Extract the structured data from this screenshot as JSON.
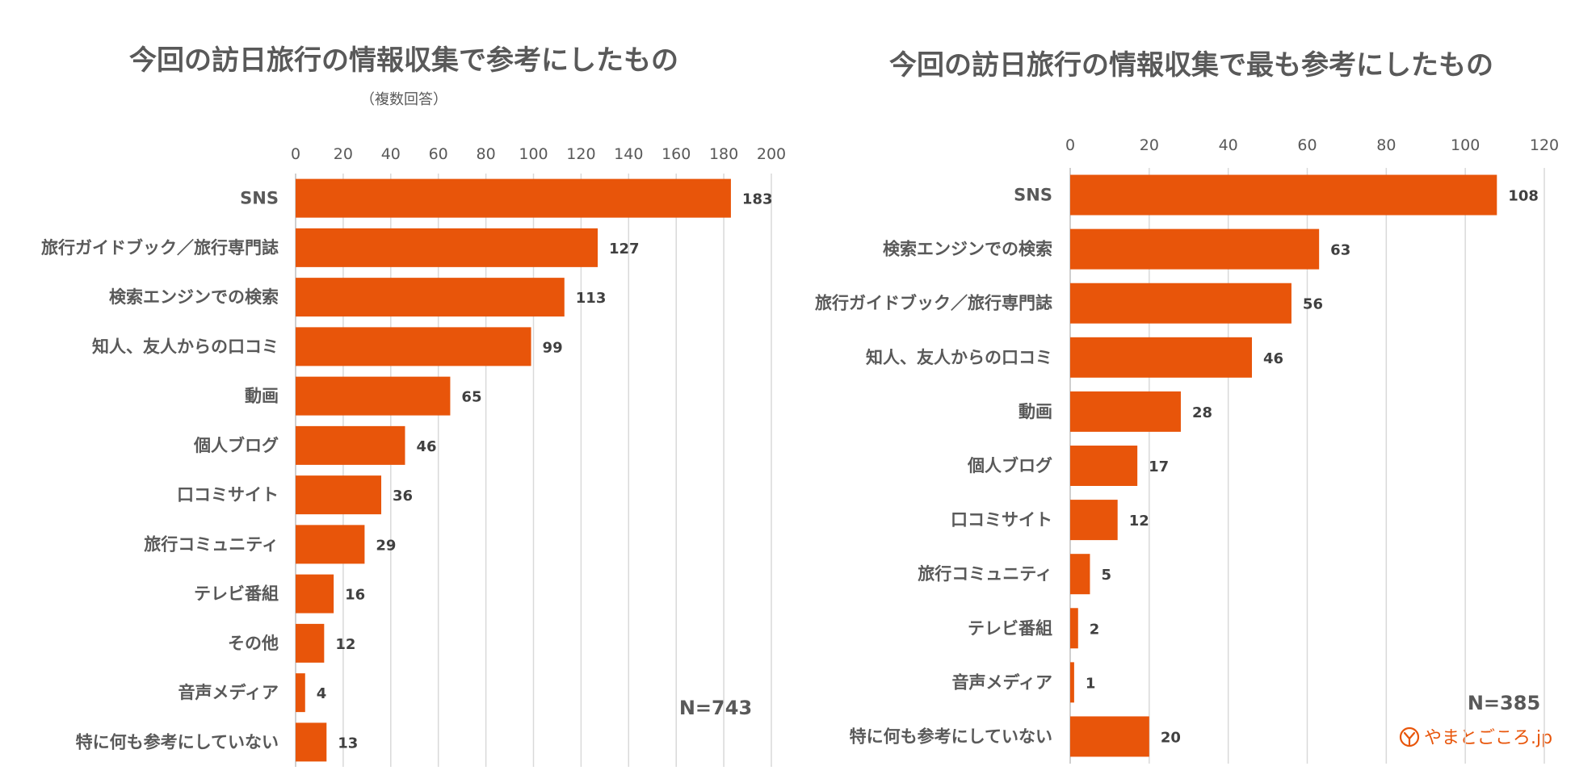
{
  "colors": {
    "bar": "#e8550a",
    "text": "#595959",
    "grid": "#d9d9d9"
  },
  "chart_data": [
    {
      "type": "bar",
      "orientation": "horizontal",
      "title": "今回の訪日旅行の情報収集で参考にしたもの",
      "subtitle": "（複数回答）",
      "xlim": [
        0,
        200
      ],
      "ticks": [
        "0",
        "20",
        "40",
        "60",
        "80",
        "100",
        "120",
        "140",
        "160",
        "180",
        "200"
      ],
      "categories": [
        "SNS",
        "旅行ガイドブック／旅行専門誌",
        "検索エンジンでの検索",
        "知人、友人からの口コミ",
        "動画",
        "個人ブログ",
        "口コミサイト",
        "旅行コミュニティ",
        "テレビ番組",
        "その他",
        "音声メディア",
        "特に何も参考にしていない"
      ],
      "values": [
        183,
        127,
        113,
        99,
        65,
        46,
        36,
        29,
        16,
        12,
        4,
        13
      ],
      "n_label": "N=743"
    },
    {
      "type": "bar",
      "orientation": "horizontal",
      "title": "今回の訪日旅行の情報収集で最も参考にしたもの",
      "subtitle": "",
      "xlim": [
        0,
        120
      ],
      "ticks": [
        "0",
        "20",
        "40",
        "60",
        "80",
        "100",
        "120"
      ],
      "categories": [
        "SNS",
        "検索エンジンでの検索",
        "旅行ガイドブック／旅行専門誌",
        "知人、友人からの口コミ",
        "動画",
        "個人ブログ",
        "口コミサイト",
        "旅行コミュニティ",
        "テレビ番組",
        "音声メディア",
        "特に何も参考にしていない"
      ],
      "values": [
        108,
        63,
        56,
        46,
        28,
        17,
        12,
        5,
        2,
        1,
        20
      ],
      "n_label": "N=385"
    }
  ],
  "branding": {
    "logo_text": "やまとごころ.jp"
  }
}
